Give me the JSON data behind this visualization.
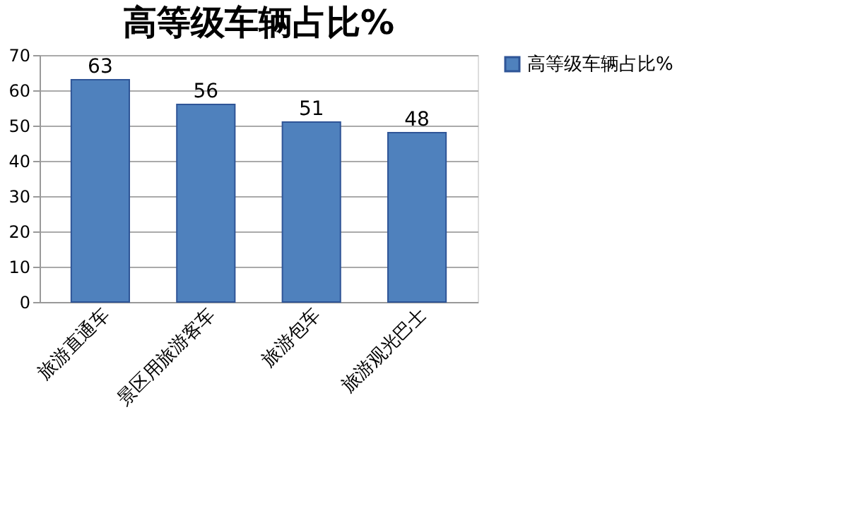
{
  "chart_data": {
    "type": "bar",
    "title": "高等级车辆占比%",
    "categories": [
      "旅游直通车",
      "景区用旅游客车",
      "旅游包车",
      "旅游观光巴士"
    ],
    "series": [
      {
        "name": "高等级车辆占比%",
        "color": "#4f81bd",
        "values": [
          63,
          56,
          51,
          48
        ]
      }
    ],
    "ylim": [
      0,
      70
    ],
    "yticks": [
      0,
      10,
      20,
      30,
      40,
      50,
      60,
      70
    ],
    "grid": "y",
    "legend": "right",
    "data_labels": true
  }
}
